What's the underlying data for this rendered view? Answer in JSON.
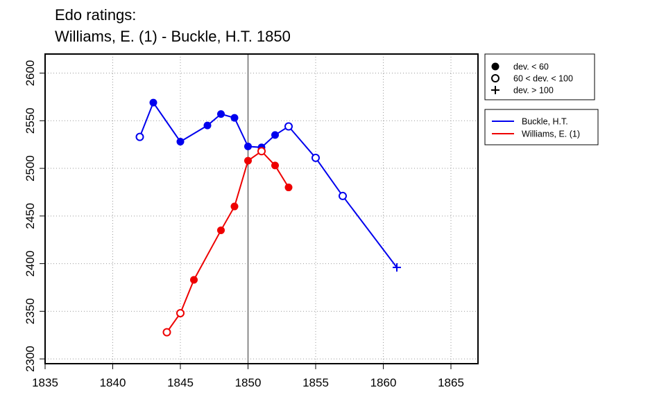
{
  "chart_data": {
    "type": "line",
    "title": "Edo ratings:",
    "subtitle": "Williams, E. (1) - Buckle, H.T. 1850",
    "xlim": [
      1835,
      1867
    ],
    "ylim": [
      2295,
      2620
    ],
    "x_ticks": [
      1835,
      1840,
      1845,
      1850,
      1855,
      1860,
      1865
    ],
    "y_ticks": [
      2300,
      2350,
      2400,
      2450,
      2500,
      2550,
      2600
    ],
    "grid": true,
    "grid_style": "dotted",
    "reference_line_x": 1850,
    "marker_legend": [
      {
        "symbol": "filled",
        "label": "dev. < 60"
      },
      {
        "symbol": "open",
        "label": "60 < dev. < 100"
      },
      {
        "symbol": "plus",
        "label": "dev. > 100"
      }
    ],
    "legend_position": "right, outside plot",
    "series": [
      {
        "name": "Buckle, H.T.",
        "color": "#0000ee",
        "points": [
          {
            "x": 1842,
            "y": 2533,
            "marker": "open"
          },
          {
            "x": 1843,
            "y": 2569,
            "marker": "filled"
          },
          {
            "x": 1845,
            "y": 2528,
            "marker": "filled"
          },
          {
            "x": 1847,
            "y": 2545,
            "marker": "filled"
          },
          {
            "x": 1848,
            "y": 2557,
            "marker": "filled"
          },
          {
            "x": 1849,
            "y": 2553,
            "marker": "filled"
          },
          {
            "x": 1850,
            "y": 2523,
            "marker": "filled"
          },
          {
            "x": 1851,
            "y": 2522,
            "marker": "filled"
          },
          {
            "x": 1852,
            "y": 2535,
            "marker": "filled"
          },
          {
            "x": 1853,
            "y": 2544,
            "marker": "open"
          },
          {
            "x": 1855,
            "y": 2511,
            "marker": "open"
          },
          {
            "x": 1857,
            "y": 2471,
            "marker": "open"
          },
          {
            "x": 1861,
            "y": 2396,
            "marker": "plus"
          }
        ]
      },
      {
        "name": "Williams, E. (1)",
        "color": "#ee0000",
        "points": [
          {
            "x": 1844,
            "y": 2328,
            "marker": "open"
          },
          {
            "x": 1845,
            "y": 2348,
            "marker": "open"
          },
          {
            "x": 1846,
            "y": 2383,
            "marker": "filled"
          },
          {
            "x": 1848,
            "y": 2435,
            "marker": "filled"
          },
          {
            "x": 1849,
            "y": 2460,
            "marker": "filled"
          },
          {
            "x": 1850,
            "y": 2508,
            "marker": "filled"
          },
          {
            "x": 1851,
            "y": 2518,
            "marker": "open"
          },
          {
            "x": 1852,
            "y": 2503,
            "marker": "filled"
          },
          {
            "x": 1853,
            "y": 2480,
            "marker": "filled"
          }
        ]
      }
    ]
  }
}
